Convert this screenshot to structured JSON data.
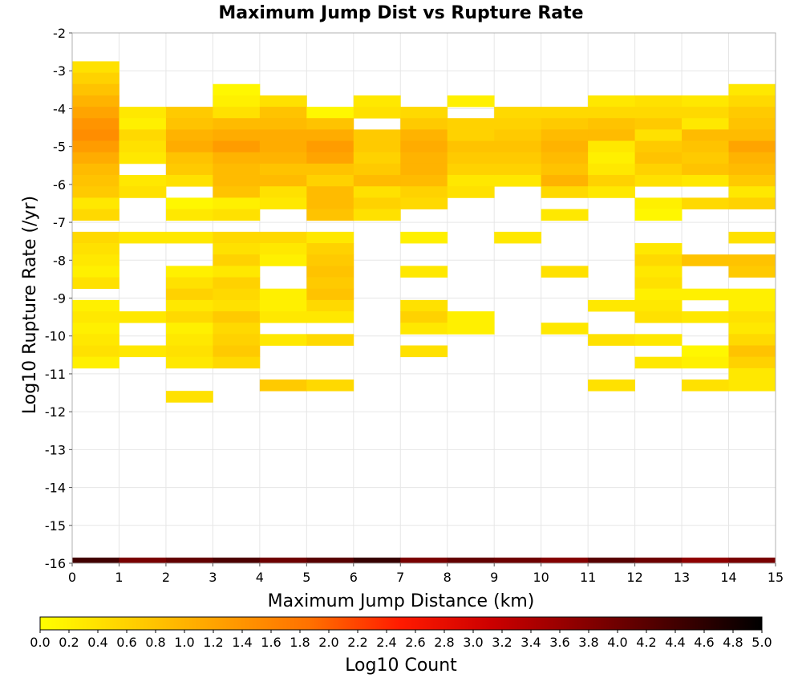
{
  "chart_data": {
    "type": "heatmap",
    "title": "Maximum Jump Dist vs Rupture Rate",
    "xlabel": "Maximum Jump Distance (km)",
    "ylabel": "Log10 Rupture Rate (/yr)",
    "xlim": [
      0,
      15
    ],
    "ylim": [
      -16,
      -2
    ],
    "x_ticks": [
      "0",
      "1",
      "2",
      "3",
      "4",
      "5",
      "6",
      "7",
      "8",
      "9",
      "10",
      "11",
      "12",
      "13",
      "14",
      "15"
    ],
    "y_ticks": [
      "-2",
      "-3",
      "-4",
      "-5",
      "-6",
      "-7",
      "-8",
      "-9",
      "-10",
      "-11",
      "-12",
      "-13",
      "-14",
      "-15",
      "-16"
    ],
    "x_bin_width": 1,
    "y_bin_height": 0.3,
    "grid": true,
    "colorbar": {
      "label": "Log10 Count",
      "min": 0.0,
      "max": 5.0,
      "ticks": [
        "0.0",
        "0.2",
        "0.4",
        "0.6",
        "0.8",
        "1.0",
        "1.2",
        "1.4",
        "1.6",
        "1.8",
        "2.0",
        "2.2",
        "2.4",
        "2.6",
        "2.8",
        "3.0",
        "3.2",
        "3.4",
        "3.6",
        "3.8",
        "4.0",
        "4.2",
        "4.4",
        "4.6",
        "4.8",
        "5.0"
      ],
      "colors": [
        "#ffff00",
        "#ffd000",
        "#ffa000",
        "#ff7000",
        "#ff1a00",
        "#cc0000",
        "#8a0000",
        "#450000",
        "#000000"
      ]
    },
    "cells": [
      {
        "x": 0,
        "y": -2.9,
        "v": 0.4
      },
      {
        "x": 0,
        "y": -3.2,
        "v": 0.6
      },
      {
        "x": 0,
        "y": -3.5,
        "v": 0.8
      },
      {
        "x": 0,
        "y": -3.8,
        "v": 1.0
      },
      {
        "x": 0,
        "y": -4.1,
        "v": 1.2
      },
      {
        "x": 0,
        "y": -4.4,
        "v": 1.4
      },
      {
        "x": 0,
        "y": -4.7,
        "v": 1.5
      },
      {
        "x": 0,
        "y": -5.0,
        "v": 1.3
      },
      {
        "x": 0,
        "y": -5.3,
        "v": 1.1
      },
      {
        "x": 0,
        "y": -5.6,
        "v": 0.9
      },
      {
        "x": 0,
        "y": -5.9,
        "v": 0.8
      },
      {
        "x": 0,
        "y": -6.2,
        "v": 0.7
      },
      {
        "x": 0,
        "y": -6.5,
        "v": 0.3
      },
      {
        "x": 0,
        "y": -6.8,
        "v": 0.5
      },
      {
        "x": 0,
        "y": -7.4,
        "v": 0.5
      },
      {
        "x": 0,
        "y": -7.7,
        "v": 0.4
      },
      {
        "x": 0,
        "y": -8.0,
        "v": 0.3
      },
      {
        "x": 0,
        "y": -8.3,
        "v": 0.2
      },
      {
        "x": 0,
        "y": -8.6,
        "v": 0.4
      },
      {
        "x": 0,
        "y": -9.2,
        "v": 0.2
      },
      {
        "x": 0,
        "y": -9.5,
        "v": 0.3
      },
      {
        "x": 0,
        "y": -9.8,
        "v": 0.2
      },
      {
        "x": 0,
        "y": -10.1,
        "v": 0.3
      },
      {
        "x": 0,
        "y": -10.4,
        "v": 0.4
      },
      {
        "x": 0,
        "y": -10.7,
        "v": 0.2
      },
      {
        "x": 1,
        "y": -4.1,
        "v": 0.3
      },
      {
        "x": 1,
        "y": -4.4,
        "v": 0.2
      },
      {
        "x": 1,
        "y": -4.7,
        "v": 0.5
      },
      {
        "x": 1,
        "y": -5.0,
        "v": 0.4
      },
      {
        "x": 1,
        "y": -5.3,
        "v": 0.3
      },
      {
        "x": 1,
        "y": -5.9,
        "v": 0.3
      },
      {
        "x": 1,
        "y": -6.2,
        "v": 0.4
      },
      {
        "x": 1,
        "y": -7.4,
        "v": 0.3
      },
      {
        "x": 1,
        "y": -9.5,
        "v": 0.3
      },
      {
        "x": 1,
        "y": -10.4,
        "v": 0.3
      },
      {
        "x": 2,
        "y": -4.1,
        "v": 0.7
      },
      {
        "x": 2,
        "y": -4.4,
        "v": 0.8
      },
      {
        "x": 2,
        "y": -4.7,
        "v": 1.0
      },
      {
        "x": 2,
        "y": -5.0,
        "v": 1.1
      },
      {
        "x": 2,
        "y": -5.3,
        "v": 0.8
      },
      {
        "x": 2,
        "y": -5.6,
        "v": 0.7
      },
      {
        "x": 2,
        "y": -5.9,
        "v": 0.4
      },
      {
        "x": 2,
        "y": -6.5,
        "v": 0.1
      },
      {
        "x": 2,
        "y": -6.8,
        "v": 0.3
      },
      {
        "x": 2,
        "y": -7.4,
        "v": 0.3
      },
      {
        "x": 2,
        "y": -8.3,
        "v": 0.2
      },
      {
        "x": 2,
        "y": -8.6,
        "v": 0.4
      },
      {
        "x": 2,
        "y": -8.9,
        "v": 0.6
      },
      {
        "x": 2,
        "y": -9.2,
        "v": 0.3
      },
      {
        "x": 2,
        "y": -9.5,
        "v": 0.5
      },
      {
        "x": 2,
        "y": -9.8,
        "v": 0.2
      },
      {
        "x": 2,
        "y": -10.1,
        "v": 0.3
      },
      {
        "x": 2,
        "y": -10.4,
        "v": 0.4
      },
      {
        "x": 2,
        "y": -10.7,
        "v": 0.3
      },
      {
        "x": 2,
        "y": -11.6,
        "v": 0.4
      },
      {
        "x": 3,
        "y": -3.5,
        "v": 0.1
      },
      {
        "x": 3,
        "y": -3.8,
        "v": 0.2
      },
      {
        "x": 3,
        "y": -4.1,
        "v": 0.4
      },
      {
        "x": 3,
        "y": -4.4,
        "v": 0.9
      },
      {
        "x": 3,
        "y": -4.7,
        "v": 1.1
      },
      {
        "x": 3,
        "y": -5.0,
        "v": 1.3
      },
      {
        "x": 3,
        "y": -5.3,
        "v": 1.0
      },
      {
        "x": 3,
        "y": -5.6,
        "v": 0.9
      },
      {
        "x": 3,
        "y": -5.9,
        "v": 0.9
      },
      {
        "x": 3,
        "y": -6.2,
        "v": 0.8
      },
      {
        "x": 3,
        "y": -6.5,
        "v": 0.2
      },
      {
        "x": 3,
        "y": -6.8,
        "v": 0.4
      },
      {
        "x": 3,
        "y": -7.4,
        "v": 0.5
      },
      {
        "x": 3,
        "y": -7.7,
        "v": 0.4
      },
      {
        "x": 3,
        "y": -8.0,
        "v": 0.6
      },
      {
        "x": 3,
        "y": -8.3,
        "v": 0.3
      },
      {
        "x": 3,
        "y": -8.6,
        "v": 0.6
      },
      {
        "x": 3,
        "y": -8.9,
        "v": 0.5
      },
      {
        "x": 3,
        "y": -9.2,
        "v": 0.4
      },
      {
        "x": 3,
        "y": -9.5,
        "v": 0.7
      },
      {
        "x": 3,
        "y": -9.8,
        "v": 0.5
      },
      {
        "x": 3,
        "y": -10.1,
        "v": 0.6
      },
      {
        "x": 3,
        "y": -10.4,
        "v": 0.7
      },
      {
        "x": 3,
        "y": -10.7,
        "v": 0.5
      },
      {
        "x": 4,
        "y": -3.8,
        "v": 0.4
      },
      {
        "x": 4,
        "y": -4.1,
        "v": 0.8
      },
      {
        "x": 4,
        "y": -4.4,
        "v": 0.9
      },
      {
        "x": 4,
        "y": -4.7,
        "v": 1.1
      },
      {
        "x": 4,
        "y": -5.0,
        "v": 1.1
      },
      {
        "x": 4,
        "y": -5.3,
        "v": 1.0
      },
      {
        "x": 4,
        "y": -5.6,
        "v": 0.8
      },
      {
        "x": 4,
        "y": -5.9,
        "v": 0.9
      },
      {
        "x": 4,
        "y": -6.2,
        "v": 0.4
      },
      {
        "x": 4,
        "y": -6.5,
        "v": 0.3
      },
      {
        "x": 4,
        "y": -7.4,
        "v": 0.5
      },
      {
        "x": 4,
        "y": -7.7,
        "v": 0.3
      },
      {
        "x": 4,
        "y": -8.0,
        "v": 0.2
      },
      {
        "x": 4,
        "y": -8.9,
        "v": 0.2
      },
      {
        "x": 4,
        "y": -9.2,
        "v": 0.2
      },
      {
        "x": 4,
        "y": -9.5,
        "v": 0.3
      },
      {
        "x": 4,
        "y": -10.1,
        "v": 0.3
      },
      {
        "x": 4,
        "y": -11.3,
        "v": 0.7
      },
      {
        "x": 5,
        "y": -4.1,
        "v": 0.1
      },
      {
        "x": 5,
        "y": -4.4,
        "v": 0.8
      },
      {
        "x": 5,
        "y": -4.7,
        "v": 1.1
      },
      {
        "x": 5,
        "y": -5.0,
        "v": 1.3
      },
      {
        "x": 5,
        "y": -5.3,
        "v": 1.2
      },
      {
        "x": 5,
        "y": -5.6,
        "v": 0.8
      },
      {
        "x": 5,
        "y": -5.9,
        "v": 0.6
      },
      {
        "x": 5,
        "y": -6.2,
        "v": 0.9
      },
      {
        "x": 5,
        "y": -6.5,
        "v": 0.9
      },
      {
        "x": 5,
        "y": -6.8,
        "v": 0.8
      },
      {
        "x": 5,
        "y": -7.4,
        "v": 0.3
      },
      {
        "x": 5,
        "y": -7.7,
        "v": 0.6
      },
      {
        "x": 5,
        "y": -8.0,
        "v": 0.7
      },
      {
        "x": 5,
        "y": -8.3,
        "v": 0.8
      },
      {
        "x": 5,
        "y": -8.6,
        "v": 0.7
      },
      {
        "x": 5,
        "y": -8.9,
        "v": 0.8
      },
      {
        "x": 5,
        "y": -9.2,
        "v": 0.5
      },
      {
        "x": 5,
        "y": -9.5,
        "v": 0.3
      },
      {
        "x": 5,
        "y": -10.1,
        "v": 0.5
      },
      {
        "x": 5,
        "y": -11.3,
        "v": 0.5
      },
      {
        "x": 6,
        "y": -3.8,
        "v": 0.3
      },
      {
        "x": 6,
        "y": -4.1,
        "v": 0.4
      },
      {
        "x": 6,
        "y": -4.7,
        "v": 0.7
      },
      {
        "x": 6,
        "y": -5.0,
        "v": 0.7
      },
      {
        "x": 6,
        "y": -5.3,
        "v": 0.6
      },
      {
        "x": 6,
        "y": -5.6,
        "v": 0.7
      },
      {
        "x": 6,
        "y": -5.9,
        "v": 0.9
      },
      {
        "x": 6,
        "y": -6.2,
        "v": 0.4
      },
      {
        "x": 6,
        "y": -6.5,
        "v": 0.6
      },
      {
        "x": 6,
        "y": -6.8,
        "v": 0.4
      },
      {
        "x": 7,
        "y": -4.1,
        "v": 0.5
      },
      {
        "x": 7,
        "y": -4.4,
        "v": 0.7
      },
      {
        "x": 7,
        "y": -4.7,
        "v": 1.0
      },
      {
        "x": 7,
        "y": -5.0,
        "v": 1.1
      },
      {
        "x": 7,
        "y": -5.3,
        "v": 1.0
      },
      {
        "x": 7,
        "y": -5.6,
        "v": 1.0
      },
      {
        "x": 7,
        "y": -5.9,
        "v": 0.9
      },
      {
        "x": 7,
        "y": -6.2,
        "v": 0.6
      },
      {
        "x": 7,
        "y": -6.5,
        "v": 0.5
      },
      {
        "x": 7,
        "y": -7.4,
        "v": 0.2
      },
      {
        "x": 7,
        "y": -8.3,
        "v": 0.3
      },
      {
        "x": 7,
        "y": -9.2,
        "v": 0.4
      },
      {
        "x": 7,
        "y": -9.5,
        "v": 0.6
      },
      {
        "x": 7,
        "y": -9.8,
        "v": 0.3
      },
      {
        "x": 7,
        "y": -10.4,
        "v": 0.4
      },
      {
        "x": 8,
        "y": -3.8,
        "v": 0.2
      },
      {
        "x": 8,
        "y": -4.4,
        "v": 0.6
      },
      {
        "x": 8,
        "y": -4.7,
        "v": 0.6
      },
      {
        "x": 8,
        "y": -5.0,
        "v": 0.8
      },
      {
        "x": 8,
        "y": -5.3,
        "v": 0.7
      },
      {
        "x": 8,
        "y": -5.6,
        "v": 0.6
      },
      {
        "x": 8,
        "y": -5.9,
        "v": 0.3
      },
      {
        "x": 8,
        "y": -6.2,
        "v": 0.4
      },
      {
        "x": 8,
        "y": -9.5,
        "v": 0.2
      },
      {
        "x": 8,
        "y": -9.8,
        "v": 0.2
      },
      {
        "x": 9,
        "y": -4.1,
        "v": 0.5
      },
      {
        "x": 9,
        "y": -4.4,
        "v": 0.6
      },
      {
        "x": 9,
        "y": -4.7,
        "v": 0.7
      },
      {
        "x": 9,
        "y": -5.0,
        "v": 0.8
      },
      {
        "x": 9,
        "y": -5.3,
        "v": 0.7
      },
      {
        "x": 9,
        "y": -5.6,
        "v": 0.6
      },
      {
        "x": 9,
        "y": -5.9,
        "v": 0.3
      },
      {
        "x": 9,
        "y": -7.4,
        "v": 0.3
      },
      {
        "x": 10,
        "y": -4.1,
        "v": 0.5
      },
      {
        "x": 10,
        "y": -4.4,
        "v": 0.7
      },
      {
        "x": 10,
        "y": -4.7,
        "v": 0.9
      },
      {
        "x": 10,
        "y": -5.0,
        "v": 1.0
      },
      {
        "x": 10,
        "y": -5.3,
        "v": 0.9
      },
      {
        "x": 10,
        "y": -5.6,
        "v": 0.8
      },
      {
        "x": 10,
        "y": -5.9,
        "v": 1.0
      },
      {
        "x": 10,
        "y": -6.2,
        "v": 0.5
      },
      {
        "x": 10,
        "y": -6.8,
        "v": 0.3
      },
      {
        "x": 10,
        "y": -8.3,
        "v": 0.4
      },
      {
        "x": 10,
        "y": -9.8,
        "v": 0.3
      },
      {
        "x": 11,
        "y": -3.8,
        "v": 0.3
      },
      {
        "x": 11,
        "y": -4.1,
        "v": 0.5
      },
      {
        "x": 11,
        "y": -4.4,
        "v": 0.8
      },
      {
        "x": 11,
        "y": -4.7,
        "v": 0.9
      },
      {
        "x": 11,
        "y": -5.0,
        "v": 0.3
      },
      {
        "x": 11,
        "y": -5.3,
        "v": 0.2
      },
      {
        "x": 11,
        "y": -5.6,
        "v": 0.3
      },
      {
        "x": 11,
        "y": -5.9,
        "v": 0.6
      },
      {
        "x": 11,
        "y": -6.2,
        "v": 0.3
      },
      {
        "x": 11,
        "y": -9.2,
        "v": 0.3
      },
      {
        "x": 11,
        "y": -10.1,
        "v": 0.4
      },
      {
        "x": 11,
        "y": -11.3,
        "v": 0.4
      },
      {
        "x": 12,
        "y": -3.8,
        "v": 0.4
      },
      {
        "x": 12,
        "y": -4.1,
        "v": 0.5
      },
      {
        "x": 12,
        "y": -4.4,
        "v": 0.7
      },
      {
        "x": 12,
        "y": -4.7,
        "v": 0.4
      },
      {
        "x": 12,
        "y": -5.0,
        "v": 0.7
      },
      {
        "x": 12,
        "y": -5.3,
        "v": 0.8
      },
      {
        "x": 12,
        "y": -5.6,
        "v": 0.6
      },
      {
        "x": 12,
        "y": -5.9,
        "v": 0.4
      },
      {
        "x": 12,
        "y": -6.5,
        "v": 0.2
      },
      {
        "x": 12,
        "y": -6.8,
        "v": 0.1
      },
      {
        "x": 12,
        "y": -7.7,
        "v": 0.3
      },
      {
        "x": 12,
        "y": -8.0,
        "v": 0.5
      },
      {
        "x": 12,
        "y": -8.3,
        "v": 0.3
      },
      {
        "x": 12,
        "y": -8.6,
        "v": 0.4
      },
      {
        "x": 12,
        "y": -8.9,
        "v": 0.2
      },
      {
        "x": 12,
        "y": -9.2,
        "v": 0.3
      },
      {
        "x": 12,
        "y": -9.5,
        "v": 0.4
      },
      {
        "x": 12,
        "y": -10.1,
        "v": 0.3
      },
      {
        "x": 12,
        "y": -10.7,
        "v": 0.3
      },
      {
        "x": 13,
        "y": -3.8,
        "v": 0.3
      },
      {
        "x": 13,
        "y": -4.1,
        "v": 0.5
      },
      {
        "x": 13,
        "y": -4.4,
        "v": 0.3
      },
      {
        "x": 13,
        "y": -4.7,
        "v": 0.9
      },
      {
        "x": 13,
        "y": -5.0,
        "v": 0.8
      },
      {
        "x": 13,
        "y": -5.3,
        "v": 0.7
      },
      {
        "x": 13,
        "y": -5.6,
        "v": 0.8
      },
      {
        "x": 13,
        "y": -5.9,
        "v": 0.3
      },
      {
        "x": 13,
        "y": -6.5,
        "v": 0.5
      },
      {
        "x": 13,
        "y": -8.0,
        "v": 0.8
      },
      {
        "x": 13,
        "y": -8.9,
        "v": 0.2
      },
      {
        "x": 13,
        "y": -9.5,
        "v": 0.3
      },
      {
        "x": 13,
        "y": -10.4,
        "v": 0.1
      },
      {
        "x": 13,
        "y": -10.7,
        "v": 0.2
      },
      {
        "x": 13,
        "y": -11.3,
        "v": 0.4
      },
      {
        "x": 14,
        "y": -3.5,
        "v": 0.3
      },
      {
        "x": 14,
        "y": -3.8,
        "v": 0.5
      },
      {
        "x": 14,
        "y": -4.1,
        "v": 0.7
      },
      {
        "x": 14,
        "y": -4.4,
        "v": 0.8
      },
      {
        "x": 14,
        "y": -4.7,
        "v": 0.9
      },
      {
        "x": 14,
        "y": -5.0,
        "v": 1.2
      },
      {
        "x": 14,
        "y": -5.3,
        "v": 1.0
      },
      {
        "x": 14,
        "y": -5.6,
        "v": 0.9
      },
      {
        "x": 14,
        "y": -5.9,
        "v": 0.7
      },
      {
        "x": 14,
        "y": -6.2,
        "v": 0.3
      },
      {
        "x": 14,
        "y": -6.5,
        "v": 0.6
      },
      {
        "x": 14,
        "y": -7.4,
        "v": 0.4
      },
      {
        "x": 14,
        "y": -8.0,
        "v": 0.8
      },
      {
        "x": 14,
        "y": -8.3,
        "v": 0.7
      },
      {
        "x": 14,
        "y": -8.9,
        "v": 0.2
      },
      {
        "x": 14,
        "y": -9.2,
        "v": 0.2
      },
      {
        "x": 14,
        "y": -9.5,
        "v": 0.4
      },
      {
        "x": 14,
        "y": -9.8,
        "v": 0.3
      },
      {
        "x": 14,
        "y": -10.1,
        "v": 0.5
      },
      {
        "x": 14,
        "y": -10.4,
        "v": 0.8
      },
      {
        "x": 14,
        "y": -10.7,
        "v": 0.6
      },
      {
        "x": 14,
        "y": -11.0,
        "v": 0.3
      },
      {
        "x": 14,
        "y": -11.3,
        "v": 0.3
      },
      {
        "x": 0,
        "y": -16.0,
        "v": 4.4
      },
      {
        "x": 1,
        "y": -16.0,
        "v": 3.9
      },
      {
        "x": 2,
        "y": -16.0,
        "v": 4.1
      },
      {
        "x": 3,
        "y": -16.0,
        "v": 4.3
      },
      {
        "x": 4,
        "y": -16.0,
        "v": 4.0
      },
      {
        "x": 5,
        "y": -16.0,
        "v": 4.2
      },
      {
        "x": 6,
        "y": -16.0,
        "v": 4.5
      },
      {
        "x": 7,
        "y": -16.0,
        "v": 3.9
      },
      {
        "x": 8,
        "y": -16.0,
        "v": 4.1
      },
      {
        "x": 9,
        "y": -16.0,
        "v": 4.0
      },
      {
        "x": 10,
        "y": -16.0,
        "v": 3.8
      },
      {
        "x": 11,
        "y": -16.0,
        "v": 4.2
      },
      {
        "x": 12,
        "y": -16.0,
        "v": 4.0
      },
      {
        "x": 13,
        "y": -16.0,
        "v": 3.7
      },
      {
        "x": 14,
        "y": -16.0,
        "v": 3.9
      }
    ]
  }
}
